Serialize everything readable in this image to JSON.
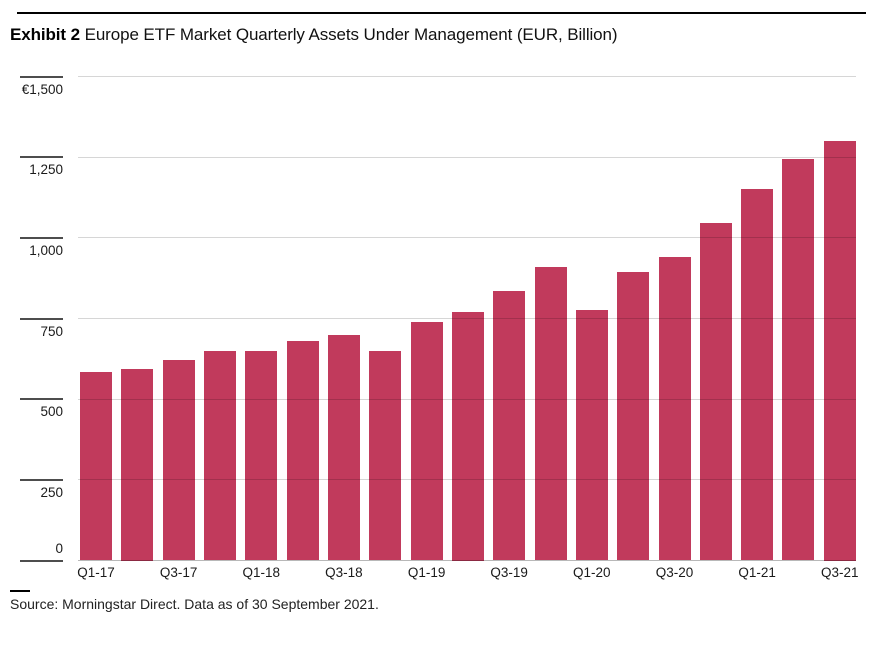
{
  "header": {
    "exhibit_label": "Exhibit 2",
    "title_rest": " Europe ETF Market Quarterly Assets Under Management (EUR, Billion)"
  },
  "footer": {
    "source": "Source: Morningstar Direct. Data as of 30 September 2021."
  },
  "chart_data": {
    "type": "bar",
    "title": "Europe ETF Market Quarterly Assets Under Management (EUR, Billion)",
    "categories": [
      "Q1-17",
      "Q2-17",
      "Q3-17",
      "Q4-17",
      "Q1-18",
      "Q2-18",
      "Q3-18",
      "Q4-18",
      "Q1-19",
      "Q2-19",
      "Q3-19",
      "Q4-19",
      "Q1-20",
      "Q2-20",
      "Q3-20",
      "Q4-20",
      "Q1-21",
      "Q2-21",
      "Q3-21"
    ],
    "values": [
      585,
      595,
      620,
      650,
      650,
      680,
      700,
      650,
      740,
      770,
      835,
      910,
      775,
      895,
      940,
      1045,
      1150,
      1245,
      1300
    ],
    "x_tick_labels": [
      "Q1-17",
      "Q3-17",
      "Q1-18",
      "Q3-18",
      "Q1-19",
      "Q3-19",
      "Q1-20",
      "Q3-20",
      "Q1-21",
      "Q3-21"
    ],
    "x_tick_every": 2,
    "y_ticks": [
      0,
      250,
      500,
      750,
      1000,
      1250,
      1500
    ],
    "y_tick_labels": [
      "0",
      "250",
      "500",
      "750",
      "1,000",
      "1,250",
      "€1,500"
    ],
    "ylim": [
      0,
      1500
    ],
    "xlabel": "",
    "ylabel": "",
    "bar_color": "#C13A5C",
    "grid": true,
    "legend": "none"
  }
}
